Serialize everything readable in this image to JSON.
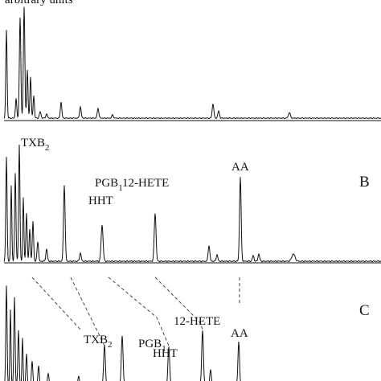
{
  "panel_a": {
    "axis_label": "arbitrary units"
  },
  "panel_b": {
    "letter": "B",
    "peaks": [
      {
        "text": "TXB",
        "sub": "2"
      },
      {
        "text": "PGB",
        "sub": "1"
      },
      {
        "text": "HHT"
      },
      {
        "text": "12-HETE"
      },
      {
        "text": "AA"
      }
    ]
  },
  "panel_c": {
    "letter": "C",
    "peaks": [
      {
        "text": "TXB",
        "sub": "2"
      },
      {
        "text": "PGB",
        "sub": "1"
      },
      {
        "text": "HHT"
      },
      {
        "text": "12-HETE"
      },
      {
        "text": "AA"
      }
    ]
  }
}
